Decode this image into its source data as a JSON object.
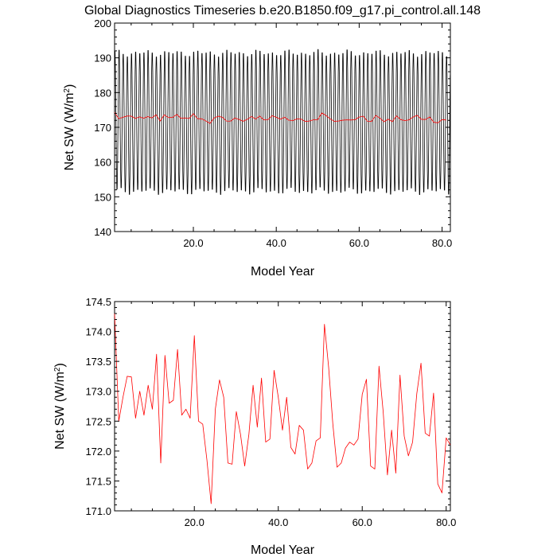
{
  "figure": {
    "title": "Global Diagnostics Timeseries b.e20.B1850.f09_g17.pi_control.all.148"
  },
  "chart_data": [
    {
      "type": "line",
      "title": "Global Diagnostics Timeseries b.e20.B1850.f09_g17.pi_control.all.148",
      "xlabel": "Model Year",
      "ylabel_main": "Net SW (W/m",
      "ylabel_sup": "2",
      "ylabel_close": ")",
      "xlim": [
        1,
        82
      ],
      "ylim": [
        140,
        200
      ],
      "xticks": [
        20,
        40,
        60,
        80
      ],
      "xtick_labels": [
        "20.0",
        "40.0",
        "60.0",
        "80.0"
      ],
      "yticks": [
        140,
        150,
        160,
        170,
        180,
        190,
        200
      ],
      "ytick_labels": [
        "140",
        "150",
        "160",
        "170",
        "180",
        "190",
        "200"
      ],
      "grid": false,
      "series": [
        {
          "color": "#000000",
          "monthly": true,
          "start_year": 1.04,
          "mean": 171.5,
          "amplitude": 20.5,
          "peak_month": 0.5
        },
        {
          "color": "#ff0000",
          "x": [
            1,
            2,
            3,
            4,
            5,
            6,
            7,
            8,
            9,
            10,
            11,
            12,
            13,
            14,
            15,
            16,
            17,
            18,
            19,
            20,
            21,
            22,
            23,
            24,
            25,
            26,
            27,
            28,
            29,
            30,
            31,
            32,
            33,
            34,
            35,
            36,
            37,
            38,
            39,
            40,
            41,
            42,
            43,
            44,
            45,
            46,
            47,
            48,
            49,
            50,
            51,
            52,
            53,
            54,
            55,
            56,
            57,
            58,
            59,
            60,
            61,
            62,
            63,
            64,
            65,
            66,
            67,
            68,
            69,
            70,
            71,
            72,
            73,
            74,
            75,
            76,
            77,
            78,
            79,
            80,
            81
          ],
          "values": [
            174.3,
            172.5,
            172.9,
            173.25,
            173.24,
            172.55,
            173.0,
            172.6,
            173.1,
            172.7,
            173.62,
            171.8,
            173.6,
            172.8,
            172.85,
            173.7,
            172.6,
            172.7,
            172.55,
            173.93,
            172.5,
            172.45,
            171.85,
            171.12,
            172.7,
            173.19,
            172.9,
            171.8,
            171.78,
            172.66,
            172.28,
            171.75,
            172.28,
            173.1,
            172.4,
            173.22,
            172.15,
            172.2,
            173.35,
            172.9,
            172.35,
            172.9,
            172.06,
            171.95,
            172.43,
            172.35,
            171.7,
            171.8,
            172.17,
            172.22,
            174.12,
            173.4,
            172.45,
            171.73,
            171.8,
            172.05,
            172.15,
            172.1,
            172.2,
            172.95,
            173.2,
            171.75,
            171.7,
            173.42,
            172.65,
            171.6,
            172.35,
            171.63,
            173.27,
            172.25,
            171.92,
            172.15,
            172.96,
            173.47,
            172.3,
            172.25,
            172.97,
            171.45,
            171.3,
            172.22,
            172.1
          ]
        }
      ]
    },
    {
      "type": "line",
      "xlabel": "Model Year",
      "ylabel_main": "Net SW (W/m",
      "ylabel_sup": "2",
      "ylabel_close": ")",
      "xlim": [
        1,
        81
      ],
      "ylim": [
        171.0,
        174.5
      ],
      "xticks": [
        20,
        40,
        60,
        80
      ],
      "xtick_labels": [
        "20.0",
        "40.0",
        "60.0",
        "80.0"
      ],
      "yticks": [
        171.0,
        171.5,
        172.0,
        172.5,
        173.0,
        173.5,
        174.0,
        174.5
      ],
      "ytick_labels": [
        "171.0",
        "171.5",
        "172.0",
        "172.5",
        "173.0",
        "173.5",
        "174.0",
        "174.5"
      ],
      "grid": false,
      "series": [
        {
          "color": "#ff0000",
          "x": [
            1,
            2,
            3,
            4,
            5,
            6,
            7,
            8,
            9,
            10,
            11,
            12,
            13,
            14,
            15,
            16,
            17,
            18,
            19,
            20,
            21,
            22,
            23,
            24,
            25,
            26,
            27,
            28,
            29,
            30,
            31,
            32,
            33,
            34,
            35,
            36,
            37,
            38,
            39,
            40,
            41,
            42,
            43,
            44,
            45,
            46,
            47,
            48,
            49,
            50,
            51,
            52,
            53,
            54,
            55,
            56,
            57,
            58,
            59,
            60,
            61,
            62,
            63,
            64,
            65,
            66,
            67,
            68,
            69,
            70,
            71,
            72,
            73,
            74,
            75,
            76,
            77,
            78,
            79,
            80,
            81
          ],
          "values": [
            174.3,
            172.5,
            172.9,
            173.25,
            173.24,
            172.55,
            173.0,
            172.6,
            173.1,
            172.7,
            173.62,
            171.8,
            173.6,
            172.8,
            172.85,
            173.7,
            172.6,
            172.7,
            172.55,
            173.93,
            172.5,
            172.45,
            171.85,
            171.12,
            172.7,
            173.19,
            172.9,
            171.8,
            171.78,
            172.66,
            172.28,
            171.75,
            172.28,
            173.1,
            172.4,
            173.22,
            172.15,
            172.2,
            173.35,
            172.9,
            172.35,
            172.9,
            172.06,
            171.95,
            172.43,
            172.35,
            171.7,
            171.8,
            172.17,
            172.22,
            174.12,
            173.4,
            172.45,
            171.73,
            171.8,
            172.05,
            172.15,
            172.1,
            172.2,
            172.95,
            173.2,
            171.75,
            171.7,
            173.42,
            172.65,
            171.6,
            172.35,
            171.63,
            173.27,
            172.25,
            171.92,
            172.15,
            172.96,
            173.47,
            172.3,
            172.25,
            172.97,
            171.45,
            171.3,
            172.22,
            172.1
          ]
        }
      ]
    }
  ]
}
